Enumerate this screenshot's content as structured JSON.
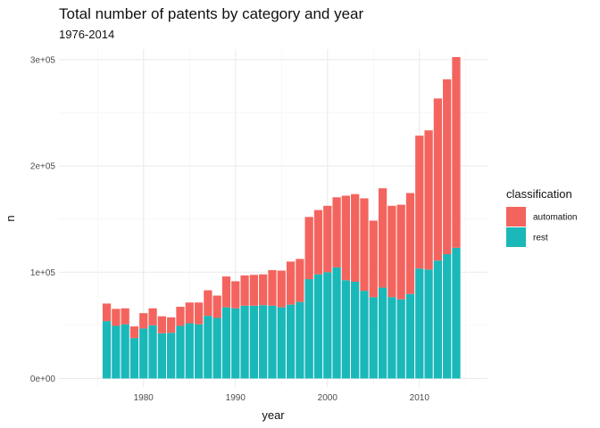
{
  "chart_data": {
    "type": "bar",
    "stacked": true,
    "title": "Total number of patents by category and year",
    "subtitle": "1976-2014",
    "xlabel": "year",
    "ylabel": "n",
    "x": [
      1976,
      1977,
      1978,
      1979,
      1980,
      1981,
      1982,
      1983,
      1984,
      1985,
      1986,
      1987,
      1988,
      1989,
      1990,
      1991,
      1992,
      1993,
      1994,
      1995,
      1996,
      1997,
      1998,
      1999,
      2000,
      2001,
      2002,
      2003,
      2004,
      2005,
      2006,
      2007,
      2008,
      2009,
      2010,
      2011,
      2012,
      2013,
      2014
    ],
    "xlim": [
      1970.8,
      2017.4
    ],
    "ylim": [
      -8000,
      310000
    ],
    "x_ticks": [
      1980,
      1990,
      2000,
      2010
    ],
    "x_tick_labels": [
      "1980",
      "1990",
      "2000",
      "2010"
    ],
    "y_ticks": [
      0,
      100000,
      200000,
      300000
    ],
    "y_tick_labels": [
      "0e+00",
      "1e+05",
      "2e+05",
      "3e+05"
    ],
    "grid": true,
    "legend": {
      "title": "classification",
      "position": "right"
    },
    "series": [
      {
        "name": "rest",
        "color": "#1ab8b9",
        "values": [
          54000,
          49500,
          51000,
          38000,
          47000,
          50000,
          42500,
          43000,
          49500,
          52000,
          51000,
          59000,
          57000,
          67000,
          66000,
          68500,
          68500,
          69000,
          68500,
          67000,
          69500,
          72000,
          93500,
          98000,
          100000,
          104500,
          92500,
          91000,
          82500,
          76500,
          85500,
          76500,
          74500,
          79500,
          103500,
          102500,
          111000,
          117000,
          123000
        ]
      },
      {
        "name": "automation",
        "color": "#f4645e",
        "values": [
          16500,
          16000,
          15000,
          11000,
          14500,
          16000,
          16000,
          14500,
          18000,
          19500,
          20500,
          24000,
          21000,
          29000,
          25500,
          28500,
          29000,
          29000,
          33500,
          34500,
          40500,
          40500,
          58500,
          60500,
          62500,
          66000,
          79500,
          82500,
          87000,
          72000,
          93500,
          86000,
          89000,
          95000,
          125000,
          131000,
          152500,
          164500,
          179500
        ]
      }
    ]
  }
}
